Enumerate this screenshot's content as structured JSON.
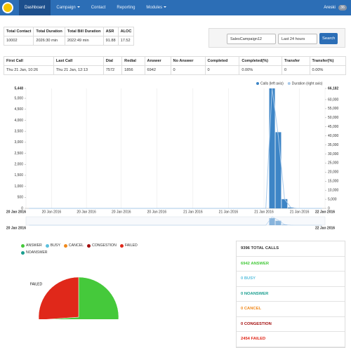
{
  "nav": {
    "items": [
      "Dashboard",
      "Campaign",
      "Contact",
      "Reporting",
      "Modules"
    ],
    "user": "Areski",
    "badge": "36"
  },
  "summary_table": {
    "headers": [
      "Total Contact",
      "Total Duration",
      "Total Bill Duration",
      "ASR",
      "ALOC"
    ],
    "row": [
      "10002",
      "2026:30 min",
      "2022:49 min",
      "91.88",
      "17.52"
    ]
  },
  "filter": {
    "campaign": "SalesCampaign12",
    "period": "Last 24 hours",
    "button": "Search"
  },
  "calls_table": {
    "headers": [
      "First Call",
      "Last Call",
      "Dial",
      "Redial",
      "Answer",
      "No Answer",
      "Completed",
      "Completed(%)",
      "Transfer",
      "Transfer(%)"
    ],
    "row": [
      "Thu 21 Jan, 10:26",
      "Thu 21 Jan, 12:13",
      "7572",
      "1856",
      "6942",
      "0",
      "0",
      "0.00%",
      "0",
      "0.00%"
    ]
  },
  "chart_data": [
    {
      "type": "bar",
      "categories": [
        null,
        null,
        null,
        null,
        null,
        null,
        null,
        null,
        null,
        null,
        null,
        null,
        null,
        null,
        null,
        null,
        null,
        null,
        null,
        null,
        null,
        null,
        null,
        null,
        null,
        null,
        null,
        null,
        null,
        null,
        null,
        null,
        null,
        null,
        null,
        null,
        null,
        null,
        null,
        null,
        null,
        null,
        null,
        null,
        null,
        null,
        null,
        null
      ],
      "series": [
        {
          "name": "Calls (left axis)",
          "type": "bar",
          "color": "#3d85c6",
          "values": [
            0,
            0,
            0,
            0,
            0,
            0,
            0,
            0,
            0,
            0,
            0,
            0,
            0,
            0,
            0,
            0,
            0,
            0,
            0,
            0,
            0,
            0,
            0,
            0,
            0,
            0,
            0,
            0,
            0,
            0,
            0,
            0,
            0,
            0,
            0,
            0,
            0,
            0,
            0,
            5448,
            3460,
            420,
            40,
            0,
            0,
            0,
            0,
            0
          ]
        },
        {
          "name": "Duration (right axis)",
          "type": "line",
          "axis": "y2",
          "color": "#a7c9ea",
          "values": [
            0,
            0,
            0,
            0,
            0,
            0,
            0,
            0,
            0,
            0,
            0,
            0,
            0,
            0,
            0,
            0,
            0,
            0,
            0,
            0,
            0,
            0,
            0,
            0,
            0,
            0,
            0,
            0,
            0,
            0,
            0,
            0,
            0,
            0,
            0,
            0,
            0,
            0,
            0,
            66182,
            40000,
            5200,
            500,
            0,
            0,
            0,
            0,
            0
          ]
        }
      ],
      "ylim": [
        0,
        5448
      ],
      "yticks": [
        0,
        500,
        {
          "value": 1000,
          "label": "1,000"
        },
        {
          "value": 1500,
          "label": "1,500"
        },
        {
          "value": 2000,
          "label": "2,000"
        },
        {
          "value": 2500,
          "label": "2,500"
        },
        {
          "value": 3000,
          "label": "3,000"
        },
        {
          "value": 3500,
          "label": "3,500"
        },
        {
          "value": 4000,
          "label": "4,000"
        },
        {
          "value": 4500,
          "label": "4,500"
        },
        {
          "value": 5000,
          "label": "5,000"
        },
        {
          "value": 5448,
          "label": "5,448"
        }
      ],
      "y2lim": [
        0,
        66182
      ],
      "y2ticks": [
        0,
        {
          "value": 5000,
          "label": "5,000"
        },
        {
          "value": 10000,
          "label": "10,000"
        },
        {
          "value": 15000,
          "label": "15,000"
        },
        {
          "value": 20000,
          "label": "20,000"
        },
        {
          "value": 25000,
          "label": "25,000"
        },
        {
          "value": 30000,
          "label": "30,000"
        },
        {
          "value": 35000,
          "label": "35,000"
        },
        {
          "value": 40000,
          "label": "40,000"
        },
        {
          "value": 45000,
          "label": "45,000"
        },
        {
          "value": 50000,
          "label": "50,000"
        },
        {
          "value": 55000,
          "label": "55,000"
        },
        {
          "value": 60000,
          "label": "60,000"
        },
        {
          "value": 66182,
          "label": "66,182"
        }
      ],
      "xticks": [
        {
          "value": 0,
          "label": "20 Jan 2016"
        },
        {
          "value": 4.1,
          "label": "20 Jan 2016"
        },
        {
          "value": 9.7,
          "label": "20 Jan 2016"
        },
        {
          "value": 15.3,
          "label": "20 Jan 2016"
        },
        {
          "value": 21.0,
          "label": "20 Jan 2016"
        },
        {
          "value": 26.8,
          "label": "21 Jan 2016"
        },
        {
          "value": 32.5,
          "label": "21 Jan 2016"
        },
        {
          "value": 38.2,
          "label": "21 Jan 2016"
        },
        {
          "value": 43.9,
          "label": "21 Jan 2016"
        },
        {
          "value": 48,
          "label": "22 Jan 2016"
        }
      ],
      "grid": true,
      "legend": "top-right"
    },
    {
      "type": "pie",
      "categories": [
        "ANSWER",
        "BUSY",
        "CANCEL",
        "CONGESTION",
        "FAILED",
        "NOANSWER"
      ],
      "values": [
        6942,
        0,
        0,
        0,
        2454,
        0
      ],
      "colors": [
        "#45c93b",
        "#5bc0de",
        "#f0891c",
        "#a30e0e",
        "#e0281a",
        "#1a9e8f"
      ]
    }
  ],
  "disposition_summary": {
    "total": {
      "count": 9396,
      "label": "TOTAL CALLS"
    },
    "items": [
      {
        "count": 6942,
        "label": "ANSWER",
        "color": "#45c93b"
      },
      {
        "count": 0,
        "label": "BUSY",
        "color": "#5bc0de"
      },
      {
        "count": 0,
        "label": "NOANSWER",
        "color": "#1a9e8f"
      },
      {
        "count": 0,
        "label": "CANCEL",
        "color": "#f0891c"
      },
      {
        "count": 0,
        "label": "CONGESTION",
        "color": "#a30e0e"
      },
      {
        "count": 2454,
        "label": "FAILED",
        "color": "#e0281a"
      }
    ]
  }
}
